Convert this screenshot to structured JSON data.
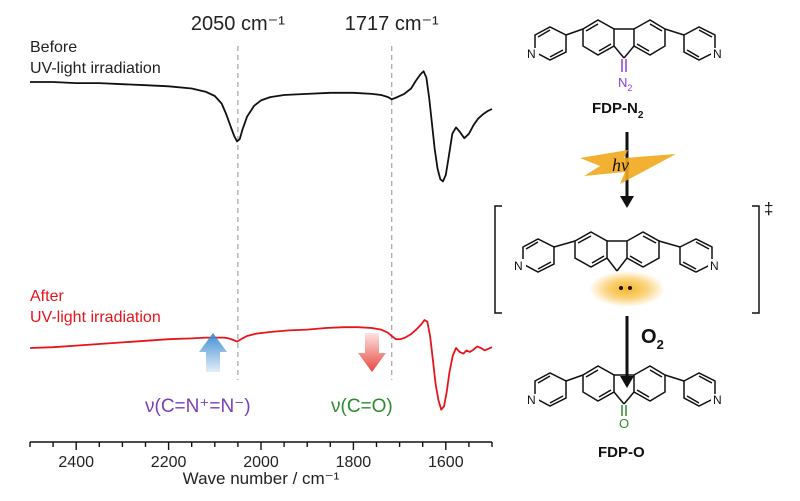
{
  "chart_data": {
    "type": "line",
    "xlabel": "Wave number / cm⁻¹",
    "ylabel": "",
    "xlim": [
      2500,
      1500
    ],
    "x_reversed": true,
    "xticks": [
      "2400",
      "2200",
      "2000",
      "1800",
      "1600"
    ],
    "grid": false,
    "reference_lines": [
      {
        "x": 2050,
        "label": "2050 cm⁻¹"
      },
      {
        "x": 1717,
        "label": "1717 cm⁻¹"
      }
    ],
    "series": [
      {
        "name_line1": "Before",
        "name_line2": "UV-light irradiation",
        "color": "#111111",
        "x": [
          2500,
          2450,
          2400,
          2350,
          2300,
          2250,
          2200,
          2150,
          2120,
          2100,
          2085,
          2075,
          2065,
          2058,
          2052,
          2046,
          2040,
          2030,
          2015,
          2000,
          1980,
          1950,
          1900,
          1850,
          1800,
          1760,
          1740,
          1725,
          1717,
          1705,
          1690,
          1675,
          1665,
          1655,
          1648,
          1642,
          1636,
          1630,
          1624,
          1618,
          1612,
          1606,
          1600,
          1594,
          1586,
          1578,
          1570,
          1560,
          1550,
          1540,
          1530,
          1520,
          1510,
          1500
        ],
        "y": [
          1.0,
          1.0,
          0.99,
          0.99,
          0.98,
          0.97,
          0.96,
          0.94,
          0.91,
          0.87,
          0.8,
          0.7,
          0.58,
          0.5,
          0.45,
          0.47,
          0.56,
          0.68,
          0.78,
          0.83,
          0.86,
          0.88,
          0.89,
          0.9,
          0.9,
          0.89,
          0.88,
          0.86,
          0.84,
          0.86,
          0.89,
          0.94,
          1.01,
          1.07,
          1.1,
          1.04,
          0.85,
          0.62,
          0.38,
          0.2,
          0.1,
          0.08,
          0.14,
          0.3,
          0.52,
          0.58,
          0.54,
          0.48,
          0.52,
          0.6,
          0.66,
          0.7,
          0.73,
          0.75
        ]
      },
      {
        "name_line1": "After",
        "name_line2": "UV-light irradiation",
        "color": "#e8141c",
        "x": [
          2500,
          2450,
          2400,
          2350,
          2300,
          2250,
          2200,
          2150,
          2120,
          2100,
          2080,
          2070,
          2060,
          2052,
          2046,
          2040,
          2030,
          2010,
          1980,
          1940,
          1900,
          1860,
          1820,
          1790,
          1760,
          1740,
          1725,
          1717,
          1708,
          1698,
          1688,
          1676,
          1664,
          1654,
          1646,
          1640,
          1634,
          1628,
          1622,
          1616,
          1610,
          1604,
          1598,
          1592,
          1585,
          1578,
          1570,
          1562,
          1555,
          1548,
          1540,
          1532,
          1524,
          1516,
          1508,
          1500
        ],
        "y": [
          0.55,
          0.56,
          0.58,
          0.6,
          0.62,
          0.64,
          0.66,
          0.67,
          0.68,
          0.68,
          0.68,
          0.67,
          0.65,
          0.63,
          0.65,
          0.67,
          0.7,
          0.73,
          0.75,
          0.77,
          0.78,
          0.8,
          0.81,
          0.81,
          0.8,
          0.78,
          0.74,
          0.7,
          0.66,
          0.66,
          0.68,
          0.72,
          0.78,
          0.84,
          0.9,
          0.88,
          0.7,
          0.4,
          0.1,
          -0.1,
          -0.22,
          -0.18,
          0.0,
          0.25,
          0.45,
          0.55,
          0.5,
          0.48,
          0.52,
          0.5,
          0.53,
          0.57,
          0.55,
          0.52,
          0.54,
          0.56
        ]
      }
    ]
  },
  "annotations": {
    "azide_band": "ν(C=N⁺=N⁻)",
    "carbonyl_band": "ν(C=O)",
    "arrow_up_color": "#3f8fd2",
    "arrow_down_color": "#e9473f",
    "azide_color": "#7a3db8",
    "carbonyl_color": "#2f8a2f"
  },
  "scheme": {
    "top_compound": "FDP-N",
    "top_compound_sub": "2",
    "diazo_atom": "N",
    "diazo_sub": "2",
    "hv_label": "hν",
    "transition_mark": "‡",
    "o2_label": "O",
    "o2_sub": "2",
    "bottom_compound": "FDP-O",
    "carbonyl_atom": "O",
    "pyridine_n": "N",
    "diazo_color": "#8a3fe0",
    "carbonyl_atom_color": "#2f8a2f",
    "lightning_color": "#f2a81d",
    "carbene_glow_color": "#f6b21a"
  }
}
